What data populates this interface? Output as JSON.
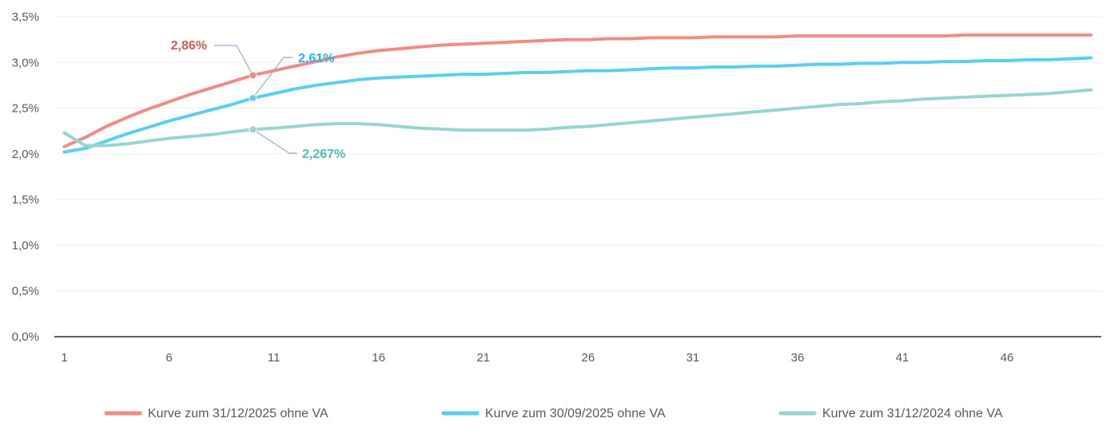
{
  "chart_data": {
    "type": "line",
    "title": "",
    "xlabel": "",
    "ylabel": "",
    "ylim": [
      0,
      0.035
    ],
    "y_ticks": [
      "0,0%",
      "0,5%",
      "1,0%",
      "1,5%",
      "2,0%",
      "2,5%",
      "3,0%",
      "3,5%"
    ],
    "x_ticks": [
      "1",
      "6",
      "11",
      "16",
      "21",
      "26",
      "31",
      "36",
      "41",
      "46"
    ],
    "x": [
      1,
      2,
      3,
      4,
      5,
      6,
      7,
      8,
      9,
      10,
      11,
      12,
      13,
      14,
      15,
      16,
      17,
      18,
      19,
      20,
      21,
      22,
      23,
      24,
      25,
      26,
      27,
      28,
      29,
      30,
      31,
      32,
      33,
      34,
      35,
      36,
      37,
      38,
      39,
      40,
      41,
      42,
      43,
      44,
      45,
      46,
      47,
      48,
      49,
      50
    ],
    "grid": true,
    "legend_position": "bottom",
    "series": [
      {
        "name": "Kurve zum 31/12/2025 ohne VA",
        "color": "#F28B86",
        "values": [
          0.0208,
          0.0218,
          0.023,
          0.024,
          0.0249,
          0.0257,
          0.0265,
          0.0272,
          0.0279,
          0.0286,
          0.0291,
          0.0296,
          0.0301,
          0.0306,
          0.031,
          0.0313,
          0.0315,
          0.0317,
          0.0319,
          0.032,
          0.0321,
          0.0322,
          0.0323,
          0.0324,
          0.0325,
          0.0325,
          0.0326,
          0.0326,
          0.0327,
          0.0327,
          0.0327,
          0.0328,
          0.0328,
          0.0328,
          0.0328,
          0.0329,
          0.0329,
          0.0329,
          0.0329,
          0.0329,
          0.0329,
          0.0329,
          0.0329,
          0.033,
          0.033,
          0.033,
          0.033,
          0.033,
          0.033,
          0.033
        ]
      },
      {
        "name": "Kurve zum 30/09/2025 ohne VA",
        "color": "#5BCEF3",
        "values": [
          0.0202,
          0.0206,
          0.0214,
          0.0222,
          0.0229,
          0.0236,
          0.0242,
          0.0248,
          0.0254,
          0.0261,
          0.0266,
          0.0271,
          0.0275,
          0.0278,
          0.0281,
          0.0283,
          0.0284,
          0.0285,
          0.0286,
          0.0287,
          0.0287,
          0.0288,
          0.0289,
          0.0289,
          0.029,
          0.0291,
          0.0291,
          0.0292,
          0.0293,
          0.0294,
          0.0294,
          0.0295,
          0.0295,
          0.0296,
          0.0296,
          0.0297,
          0.0298,
          0.0298,
          0.0299,
          0.0299,
          0.03,
          0.03,
          0.0301,
          0.0301,
          0.0302,
          0.0302,
          0.0303,
          0.0303,
          0.0304,
          0.0305
        ]
      },
      {
        "name": "Kurve zum 31/12/2024 ohne VA",
        "color": "#96D5D2",
        "values": [
          0.0223,
          0.0209,
          0.0209,
          0.0211,
          0.0214,
          0.0217,
          0.0219,
          0.0221,
          0.0224,
          0.02267,
          0.0228,
          0.023,
          0.0232,
          0.0233,
          0.0233,
          0.0232,
          0.023,
          0.0228,
          0.0227,
          0.0226,
          0.0226,
          0.0226,
          0.0226,
          0.0227,
          0.0229,
          0.023,
          0.0232,
          0.0234,
          0.0236,
          0.0238,
          0.024,
          0.0242,
          0.0244,
          0.0246,
          0.0248,
          0.025,
          0.0252,
          0.0254,
          0.0255,
          0.0257,
          0.0258,
          0.026,
          0.0261,
          0.0262,
          0.0263,
          0.0264,
          0.0265,
          0.0266,
          0.0268,
          0.027
        ]
      }
    ],
    "annotations": [
      {
        "series_index": 0,
        "x": 10,
        "text": "2,86%",
        "color": "#E05A54"
      },
      {
        "series_index": 1,
        "x": 10,
        "text": "2,61%",
        "color": "#1FB6E8"
      },
      {
        "series_index": 2,
        "x": 10,
        "text": "2,267%",
        "color": "#4DBFB8"
      }
    ]
  }
}
